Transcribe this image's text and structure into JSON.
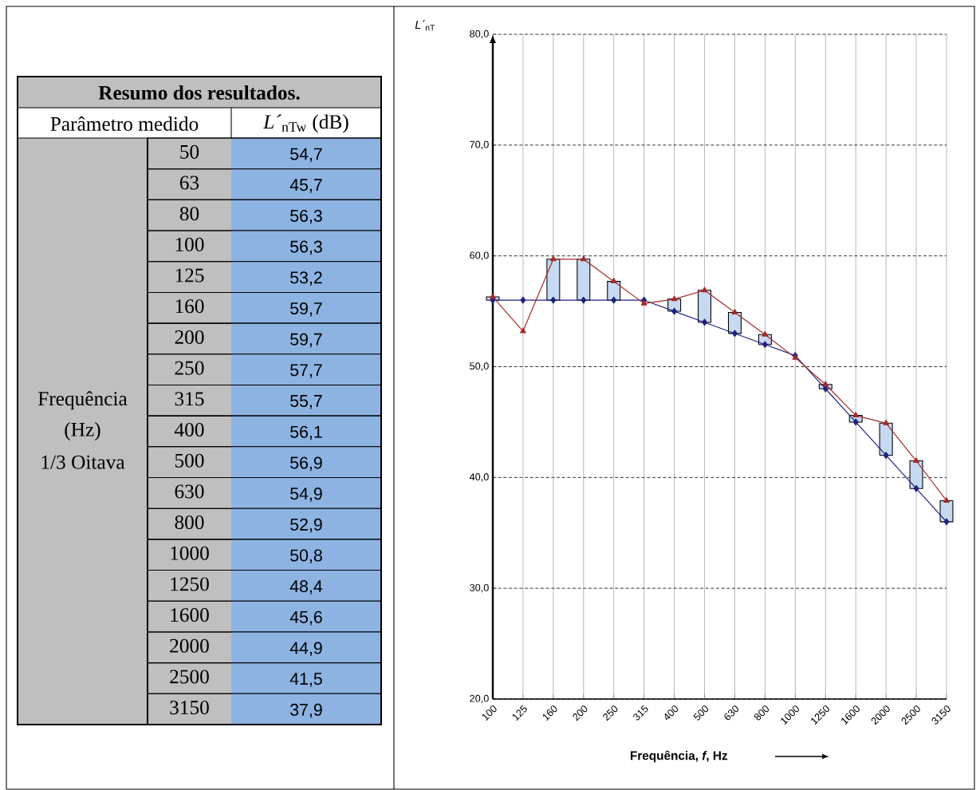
{
  "chart_data": [
    {
      "type": "other",
      "title": "Resumo dos resultados.",
      "annotations": [
        "Parâmetro medido",
        "*L´*$_{nTw}$ (dB)",
        "Frequência",
        "(Hz)",
        "1/3 Oitava"
      ],
      "categories": [
        "50",
        "63",
        "80",
        "100",
        "125",
        "160",
        "200",
        "250",
        "315",
        "400",
        "500",
        "630",
        "800",
        "1000",
        "1250",
        "1600",
        "2000",
        "2500",
        "3150"
      ],
      "value_labels": [
        "54,7",
        "45,7",
        "56,3",
        "56,3",
        "53,2",
        "59,7",
        "59,7",
        "57,7",
        "55,7",
        "56,1",
        "56,9",
        "54,9",
        "52,9",
        "50,8",
        "48,4",
        "45,6",
        "44,9",
        "41,5",
        "37,9"
      ]
    },
    {
      "type": "line",
      "xlabel": "Frequência, *f*, Hz",
      "ylabel": "*L´*$_{nT}$",
      "categories": [
        "100",
        "125",
        "160",
        "200",
        "250",
        "315",
        "400",
        "500",
        "630",
        "800",
        "1000",
        "1250",
        "1600",
        "2000",
        "2500",
        "3150"
      ],
      "series": [
        {
          "type": "bar",
          "color": "#c6d9f1",
          "base": [
            56,
            null,
            56,
            56,
            56,
            null,
            55,
            54,
            53,
            52,
            null,
            48,
            45,
            42,
            39,
            36
          ],
          "values": [
            0.3,
            null,
            3.7,
            3.7,
            1.7,
            null,
            1.1,
            2.9,
            1.9,
            0.9,
            null,
            0.4,
            0.6,
            2.9,
            2.5,
            1.9
          ]
        },
        {
          "color": "#202080",
          "marker": "diamond",
          "values": [
            56,
            56,
            56,
            56,
            56,
            56,
            55,
            54,
            53,
            52,
            51,
            48,
            45,
            42,
            39,
            36
          ]
        },
        {
          "color": "#a52a2a",
          "marker": "triangle",
          "values": [
            56.3,
            53.2,
            59.7,
            59.7,
            57.7,
            55.7,
            56.1,
            56.9,
            54.9,
            52.9,
            50.8,
            48.4,
            45.6,
            44.9,
            41.5,
            37.9
          ]
        }
      ],
      "ylim": [
        20,
        80
      ],
      "yticks": [
        {
          "value": 20,
          "label": "20,0"
        },
        {
          "value": 30,
          "label": "30,0"
        },
        {
          "value": 40,
          "label": "40,0"
        },
        {
          "value": 50,
          "label": "50,0"
        },
        {
          "value": 60,
          "label": "60,0"
        },
        {
          "value": 70,
          "label": "70,0"
        },
        {
          "value": 80,
          "label": "80,0"
        }
      ],
      "grid": true
    }
  ]
}
